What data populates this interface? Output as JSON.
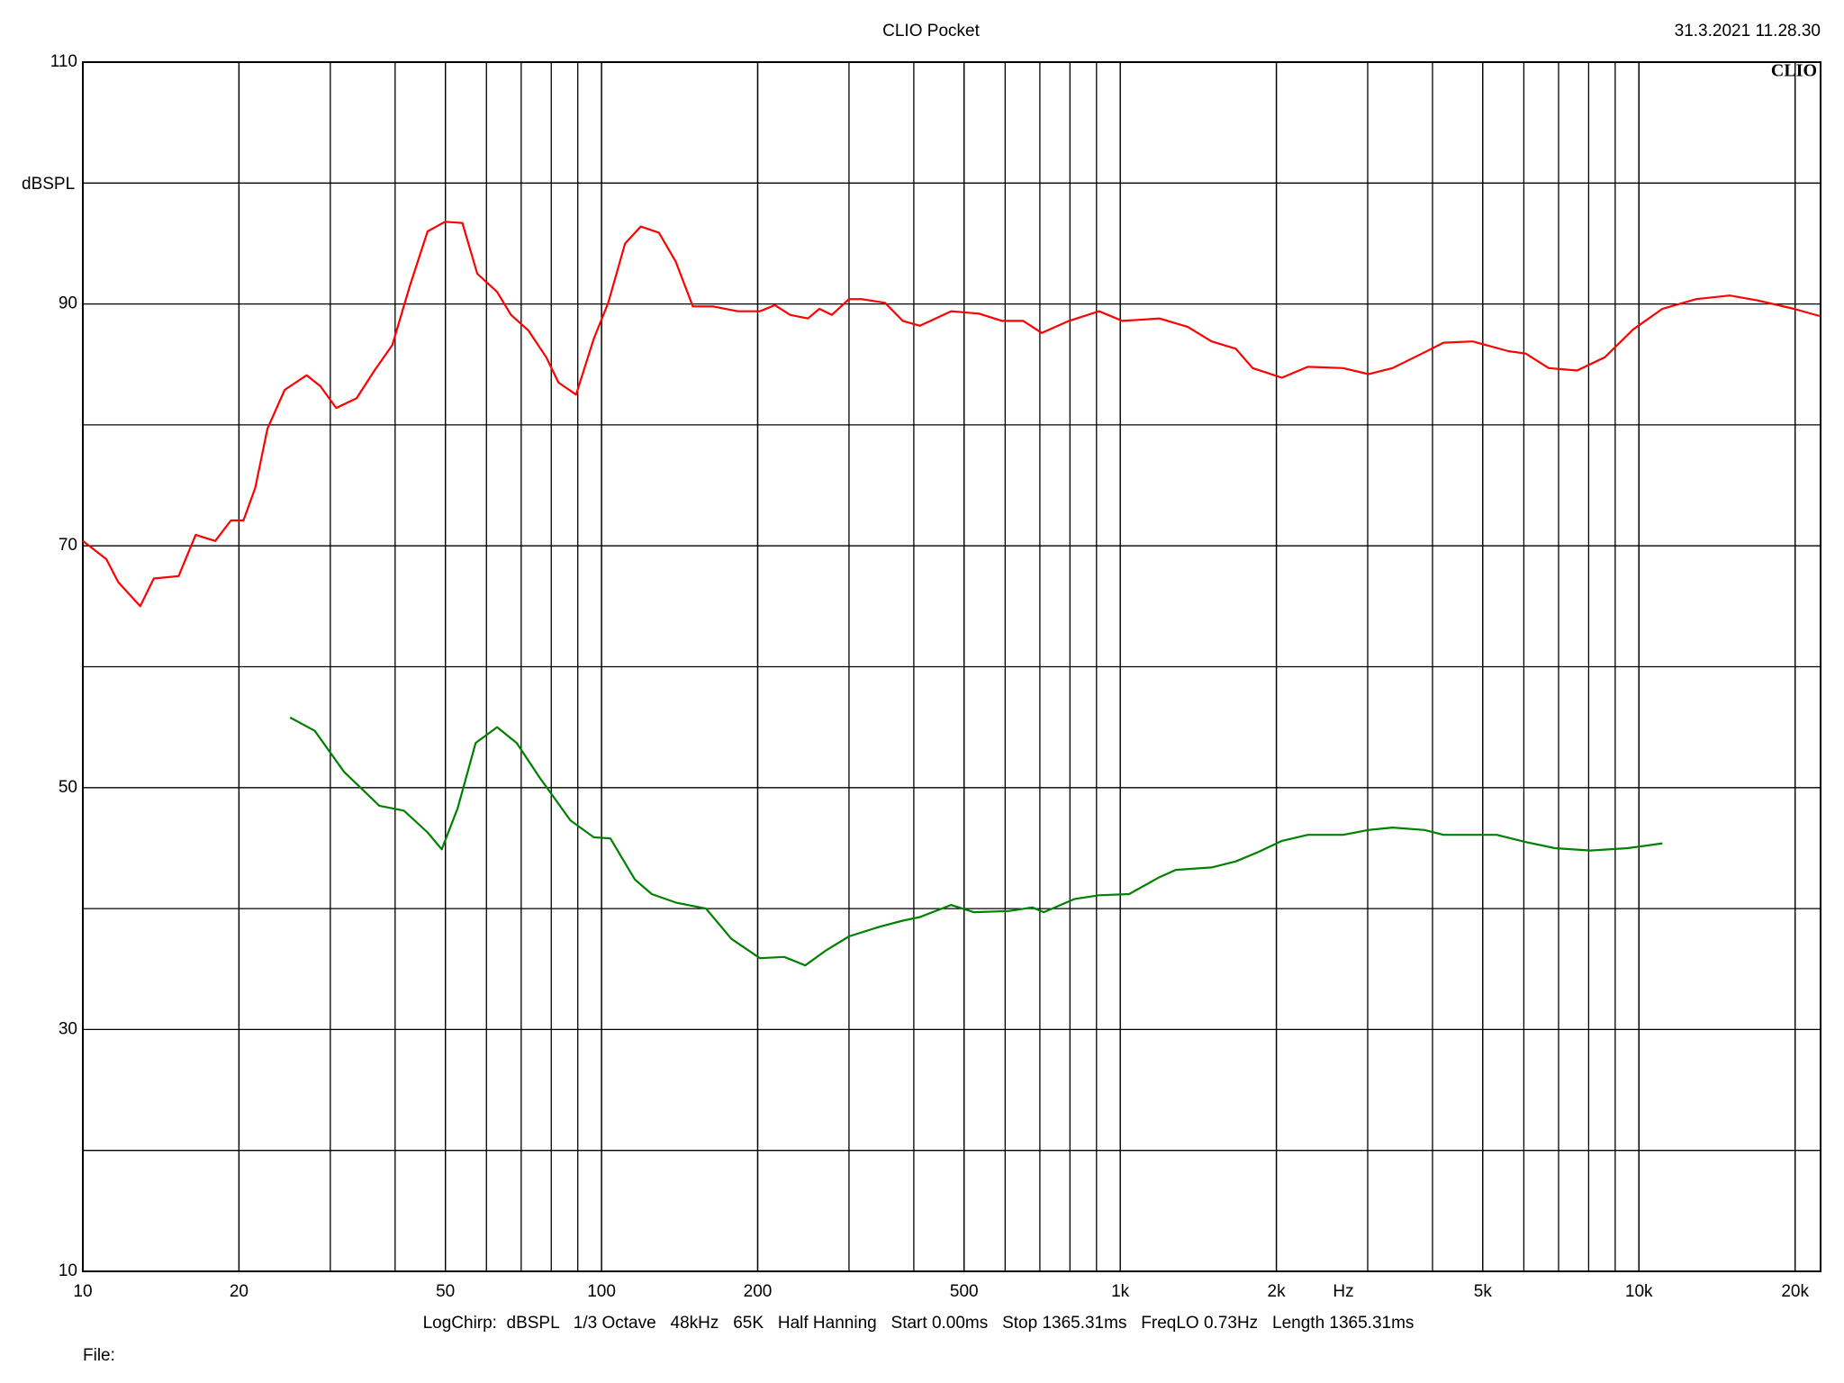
{
  "chart_data": {
    "type": "line",
    "title": "CLIO Pocket",
    "timestamp": "31.3.2021 11.28.30",
    "logo": "CLIO",
    "y_label": "dBSPL",
    "x_label": "Hz",
    "settings": "LogChirp:  dBSPL   1/3 Octave   48kHz   65K   Half Hanning   Start 0.00ms   Stop 1365.31ms   FreqLO 0.73Hz   Length 1365.31ms",
    "file_label": "File:",
    "x_log": true,
    "grid": true,
    "xlim": [
      10,
      22400
    ],
    "ylim": [
      10,
      110
    ],
    "yticks": [
      10,
      30,
      50,
      70,
      90,
      110
    ],
    "ygrid": [
      20,
      40,
      60,
      80,
      100
    ],
    "xticks": [
      10,
      20,
      50,
      100,
      200,
      500,
      {
        "value": 1000,
        "label": "1k"
      },
      {
        "value": 2000,
        "label": "2k"
      },
      {
        "value": 5000,
        "label": "5k"
      },
      {
        "value": 10000,
        "label": "10k"
      },
      {
        "value": 20000,
        "label": "20k"
      }
    ],
    "xgrid": [
      20,
      30,
      40,
      50,
      60,
      70,
      80,
      90,
      100,
      200,
      300,
      400,
      500,
      600,
      700,
      800,
      900,
      1000,
      2000,
      3000,
      4000,
      5000,
      6000,
      7000,
      8000,
      9000,
      10000,
      20000
    ],
    "series": [
      {
        "color": "#ff0000",
        "x": [
          10,
          11.1,
          11.7,
          12.9,
          13.7,
          15.3,
          16.5,
          18,
          19.3,
          20.4,
          21.5,
          22.7,
          24.5,
          27,
          28.7,
          30.8,
          33.7,
          36.5,
          39.5,
          42.7,
          46.2,
          49.9,
          53.9,
          57.6,
          62.9,
          66.9,
          72.3,
          78.2,
          82.6,
          89.3,
          96.6,
          103,
          111,
          119,
          129,
          139,
          150,
          164,
          183,
          202,
          216,
          231,
          250,
          263,
          278,
          300,
          317,
          352,
          381,
          411,
          472,
          534,
          592,
          650,
          706,
          796,
          910,
          1010,
          1190,
          1350,
          1500,
          1670,
          1800,
          2050,
          2300,
          2690,
          3010,
          3350,
          3860,
          4200,
          4780,
          5600,
          6050,
          6700,
          7600,
          8600,
          9750,
          11100,
          12900,
          14960,
          16900,
          19900,
          22300
        ],
        "values": [
          70.4,
          68.9,
          67.0,
          65.0,
          67.3,
          67.5,
          70.9,
          70.4,
          72.1,
          72.1,
          74.8,
          79.7,
          82.9,
          84.1,
          83.2,
          81.4,
          82.2,
          84.5,
          86.6,
          91.5,
          96.0,
          96.8,
          96.7,
          92.5,
          91.0,
          89.1,
          87.8,
          85.6,
          83.5,
          82.5,
          87.1,
          90.1,
          95.0,
          96.4,
          95.9,
          93.5,
          89.8,
          89.8,
          89.4,
          89.4,
          89.9,
          89.1,
          88.8,
          89.6,
          89.1,
          90.4,
          90.4,
          90.1,
          88.6,
          88.2,
          89.4,
          89.2,
          88.6,
          88.6,
          87.6,
          88.6,
          89.4,
          88.6,
          88.8,
          88.1,
          86.9,
          86.3,
          84.7,
          83.9,
          84.8,
          84.7,
          84.2,
          84.7,
          86.0,
          86.8,
          86.9,
          86.1,
          85.9,
          84.7,
          84.5,
          85.6,
          87.9,
          89.6,
          90.4,
          90.7,
          90.3,
          89.6,
          89.0
        ]
      },
      {
        "color": "#008000",
        "x": [
          25.1,
          28,
          31.9,
          37.3,
          41.6,
          46.2,
          49.2,
          52.8,
          57.2,
          62.9,
          68.6,
          76.1,
          87.1,
          96.6,
          104,
          116,
          125,
          139,
          159,
          178,
          202,
          225,
          247,
          270,
          300,
          344,
          381,
          411,
          472,
          522,
          610,
          677,
          712,
          817,
          910,
          1040,
          1190,
          1280,
          1500,
          1670,
          1850,
          2050,
          2300,
          2690,
          3010,
          3350,
          3860,
          4200,
          4910,
          5320,
          6050,
          6890,
          8060,
          9500,
          10300,
          11100
        ],
        "values": [
          55.8,
          54.7,
          51.3,
          48.5,
          48.1,
          46.3,
          44.9,
          48.3,
          53.7,
          55.0,
          53.7,
          50.8,
          47.3,
          45.9,
          45.8,
          42.4,
          41.2,
          40.5,
          40.0,
          37.5,
          35.9,
          36.0,
          35.3,
          36.5,
          37.7,
          38.5,
          39.0,
          39.3,
          40.3,
          39.7,
          39.8,
          40.1,
          39.7,
          40.8,
          41.1,
          41.2,
          42.6,
          43.2,
          43.4,
          43.9,
          44.7,
          45.6,
          46.1,
          46.1,
          46.5,
          46.7,
          46.5,
          46.1,
          46.1,
          46.1,
          45.5,
          45.0,
          44.8,
          45.0,
          45.2,
          45.4
        ]
      }
    ]
  }
}
